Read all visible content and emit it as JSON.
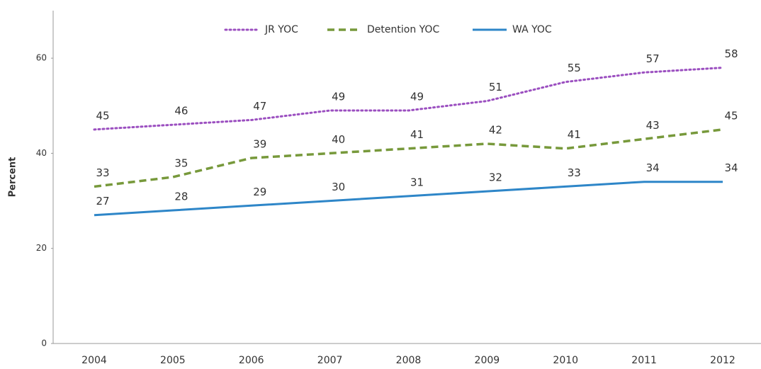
{
  "chart_data": {
    "type": "line",
    "y_label": "Percent",
    "categories": [
      "2004",
      "2005",
      "2006",
      "2007",
      "2008",
      "2009",
      "2010",
      "2011",
      "2012"
    ],
    "series": [
      {
        "name": "JR YOC",
        "color": "#9b4fc0",
        "dash": "dotted",
        "values": [
          45,
          46,
          47,
          49,
          49,
          51,
          55,
          57,
          58
        ]
      },
      {
        "name": "Detention YOC",
        "color": "#77993b",
        "dash": "dashed",
        "values": [
          33,
          35,
          39,
          40,
          41,
          42,
          41,
          43,
          45
        ]
      },
      {
        "name": "WA YOC",
        "color": "#2e86c8",
        "dash": "solid",
        "values": [
          27,
          28,
          29,
          30,
          31,
          32,
          33,
          34,
          34
        ]
      }
    ],
    "ylim": [
      0,
      70
    ],
    "yticks": [
      0,
      20,
      40,
      60
    ],
    "legend": "top",
    "grid": false
  }
}
